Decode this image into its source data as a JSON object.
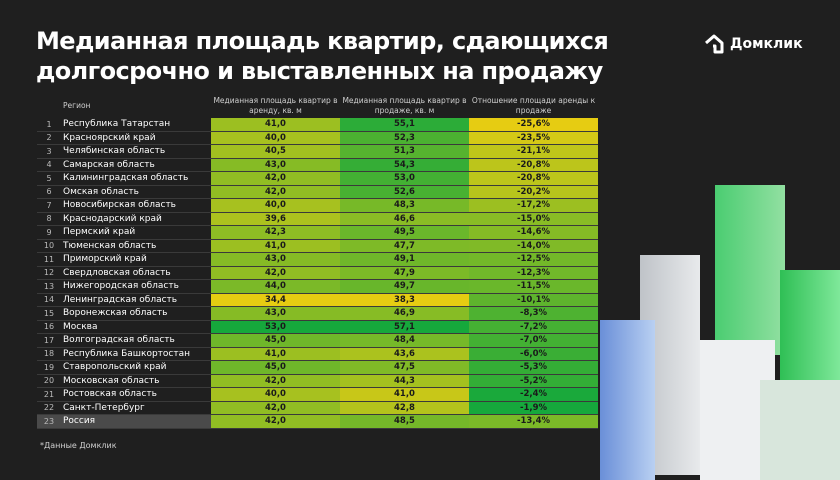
{
  "title": "Медианная площадь квартир, сдающихся долгосрочно и выставленных на продажу",
  "logo": {
    "text": "Домклик",
    "icon": "house-logo-icon"
  },
  "footnote": "*Данные Домклик",
  "colors": {
    "background": "#1f1f1f",
    "low": "#e6cc12",
    "high": "#16a83c"
  },
  "chart_data": {
    "type": "table",
    "columns": [
      "Регион",
      "Медианная площадь квартир в аренду, кв. м",
      "Медианная площадь квартир в продаже, кв. м",
      "Отношение площади аренды к продаже"
    ],
    "rows": [
      {
        "n": "1",
        "region": "Республика Татарстан",
        "rent": "41,0",
        "sale": "55,1",
        "ratio": "-25,6%"
      },
      {
        "n": "2",
        "region": "Красноярский край",
        "rent": "40,0",
        "sale": "52,3",
        "ratio": "-23,5%"
      },
      {
        "n": "3",
        "region": "Челябинская область",
        "rent": "40,5",
        "sale": "51,3",
        "ratio": "-21,1%"
      },
      {
        "n": "4",
        "region": "Самарская область",
        "rent": "43,0",
        "sale": "54,3",
        "ratio": "-20,8%"
      },
      {
        "n": "5",
        "region": "Калининградская область",
        "rent": "42,0",
        "sale": "53,0",
        "ratio": "-20,8%"
      },
      {
        "n": "6",
        "region": "Омская область",
        "rent": "42,0",
        "sale": "52,6",
        "ratio": "-20,2%"
      },
      {
        "n": "7",
        "region": "Новосибирская область",
        "rent": "40,0",
        "sale": "48,3",
        "ratio": "-17,2%"
      },
      {
        "n": "8",
        "region": "Краснодарский край",
        "rent": "39,6",
        "sale": "46,6",
        "ratio": "-15,0%"
      },
      {
        "n": "9",
        "region": "Пермский край",
        "rent": "42,3",
        "sale": "49,5",
        "ratio": "-14,6%"
      },
      {
        "n": "10",
        "region": "Тюменская область",
        "rent": "41,0",
        "sale": "47,7",
        "ratio": "-14,0%"
      },
      {
        "n": "11",
        "region": "Приморский край",
        "rent": "43,0",
        "sale": "49,1",
        "ratio": "-12,5%"
      },
      {
        "n": "12",
        "region": "Свердловская область",
        "rent": "42,0",
        "sale": "47,9",
        "ratio": "-12,3%"
      },
      {
        "n": "13",
        "region": "Нижегородская область",
        "rent": "44,0",
        "sale": "49,7",
        "ratio": "-11,5%"
      },
      {
        "n": "14",
        "region": "Ленинградская область",
        "rent": "34,4",
        "sale": "38,3",
        "ratio": "-10,1%"
      },
      {
        "n": "15",
        "region": "Воронежская область",
        "rent": "43,0",
        "sale": "46,9",
        "ratio": "-8,3%"
      },
      {
        "n": "16",
        "region": "Москва",
        "rent": "53,0",
        "sale": "57,1",
        "ratio": "-7,2%"
      },
      {
        "n": "17",
        "region": "Волгоградская область",
        "rent": "45,0",
        "sale": "48,4",
        "ratio": "-7,0%"
      },
      {
        "n": "18",
        "region": "Республика Башкортостан",
        "rent": "41,0",
        "sale": "43,6",
        "ratio": "-6,0%"
      },
      {
        "n": "19",
        "region": "Ставропольский край",
        "rent": "45,0",
        "sale": "47,5",
        "ratio": "-5,3%"
      },
      {
        "n": "20",
        "region": "Московская область",
        "rent": "42,0",
        "sale": "44,3",
        "ratio": "-5,2%"
      },
      {
        "n": "21",
        "region": "Ростовская область",
        "rent": "40,0",
        "sale": "41,0",
        "ratio": "-2,4%"
      },
      {
        "n": "22",
        "region": "Санкт-Петербург",
        "rent": "42,0",
        "sale": "42,8",
        "ratio": "-1,9%"
      },
      {
        "n": "23",
        "region": "Россия",
        "rent": "42,0",
        "sale": "48,5",
        "ratio": "-13,4%"
      }
    ]
  }
}
